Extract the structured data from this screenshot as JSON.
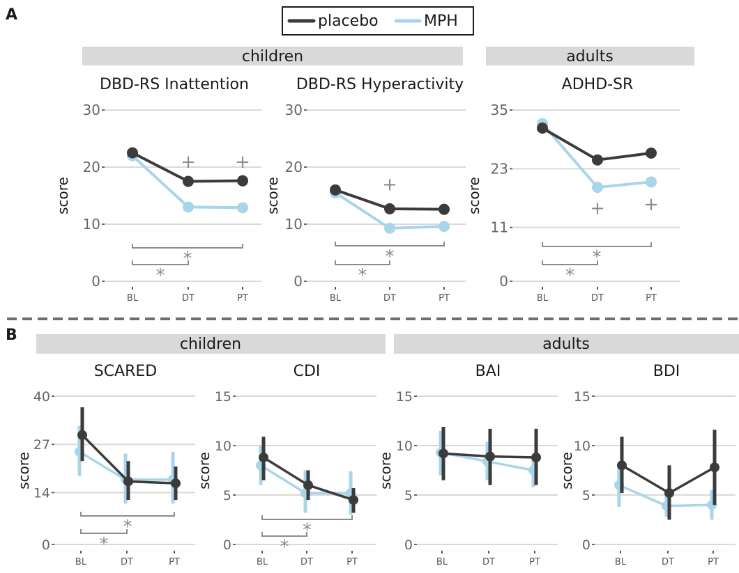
{
  "colors": {
    "placebo": "#3b3b3b",
    "mph": "#a8d5ea",
    "grid": "#d9d9d9",
    "group_header": "#d9d9d9",
    "annotation": "#8c8c8c"
  },
  "panel_labels": {
    "a": "A",
    "b": "B"
  },
  "legend": {
    "placebo": "placebo",
    "mph": "MPH"
  },
  "groups": {
    "a_children": "children",
    "a_adults": "adults",
    "b_children": "children",
    "b_adults": "adults"
  },
  "chart_data": [
    {
      "type": "line",
      "title": "DBD-RS Inattention",
      "ylabel": "score",
      "categories": [
        "BL",
        "DT",
        "PT"
      ],
      "ylim": [
        0,
        30
      ],
      "yticks": [
        "0",
        "10",
        "20",
        "30"
      ],
      "grid": true,
      "error_bars": false,
      "series": [
        {
          "name": "placebo",
          "values": [
            22.5,
            17.5,
            17.6
          ]
        },
        {
          "name": "MPH",
          "values": [
            22.0,
            13.0,
            12.9
          ]
        }
      ],
      "annotations": {
        "markers": [
          {
            "text": "+",
            "x": "DT",
            "y": 21
          },
          {
            "text": "+",
            "x": "PT",
            "y": 21
          }
        ],
        "brackets": [
          {
            "from": "BL",
            "to": "DT",
            "text": "*"
          },
          {
            "from": "BL",
            "to": "PT",
            "text": "*"
          }
        ]
      }
    },
    {
      "type": "line",
      "title": "DBD-RS Hyperactivity",
      "ylabel": "score",
      "categories": [
        "BL",
        "DT",
        "PT"
      ],
      "ylim": [
        0,
        30
      ],
      "yticks": [
        "0",
        "10",
        "20",
        "30"
      ],
      "grid": true,
      "error_bars": false,
      "series": [
        {
          "name": "placebo",
          "values": [
            16.0,
            12.7,
            12.6
          ]
        },
        {
          "name": "MPH",
          "values": [
            15.5,
            9.3,
            9.6
          ]
        }
      ],
      "annotations": {
        "markers": [
          {
            "text": "+",
            "x": "DT",
            "y": 17
          }
        ],
        "brackets": [
          {
            "from": "BL",
            "to": "DT",
            "text": "*"
          },
          {
            "from": "BL",
            "to": "PT",
            "text": "*"
          }
        ]
      }
    },
    {
      "type": "line",
      "title": "ADHD-SR",
      "ylabel": "score",
      "categories": [
        "BL",
        "DT",
        "PT"
      ],
      "ylim": [
        0,
        35
      ],
      "yticks": [
        "0",
        "11",
        "23",
        "35"
      ],
      "grid": true,
      "error_bars": false,
      "series": [
        {
          "name": "placebo",
          "values": [
            31.3,
            24.8,
            26.2
          ]
        },
        {
          "name": "MPH",
          "values": [
            32.2,
            19.2,
            20.3
          ]
        }
      ],
      "annotations": {
        "markers": [
          {
            "text": "+",
            "x": "DT",
            "y": 15
          },
          {
            "text": "+",
            "x": "PT",
            "y": 15.8
          }
        ],
        "brackets": [
          {
            "from": "BL",
            "to": "DT",
            "text": "*"
          },
          {
            "from": "BL",
            "to": "PT",
            "text": "*"
          }
        ]
      }
    },
    {
      "type": "line",
      "title": "SCARED",
      "ylabel": "score",
      "categories": [
        "BL",
        "DT",
        "PT"
      ],
      "ylim": [
        0,
        40
      ],
      "yticks": [
        "0",
        "14",
        "27",
        "40"
      ],
      "grid": true,
      "error_bars": true,
      "series": [
        {
          "name": "placebo",
          "values": [
            29.5,
            17.0,
            16.5
          ],
          "err_low": [
            22.5,
            12.0,
            12.0
          ],
          "err_high": [
            37.0,
            22.5,
            21.0
          ]
        },
        {
          "name": "MPH",
          "values": [
            25.0,
            17.5,
            17.5
          ],
          "err_low": [
            18.5,
            11.0,
            11.0
          ],
          "err_high": [
            32.0,
            24.5,
            25.0
          ]
        }
      ],
      "annotations": {
        "markers": [],
        "brackets": [
          {
            "from": "BL",
            "to": "DT",
            "text": "*"
          },
          {
            "from": "BL",
            "to": "PT",
            "text": "*"
          }
        ]
      }
    },
    {
      "type": "line",
      "title": "CDI",
      "ylabel": "score",
      "categories": [
        "BL",
        "DT",
        "PT"
      ],
      "ylim": [
        0,
        15
      ],
      "yticks": [
        "0",
        "5",
        "10",
        "15"
      ],
      "grid": true,
      "error_bars": true,
      "series": [
        {
          "name": "placebo",
          "values": [
            8.8,
            6.0,
            4.5
          ],
          "err_low": [
            6.5,
            4.5,
            3.2
          ],
          "err_high": [
            10.9,
            7.5,
            5.7
          ]
        },
        {
          "name": "MPH",
          "values": [
            8.0,
            5.2,
            5.2
          ],
          "err_low": [
            6.0,
            3.2,
            3.0
          ],
          "err_high": [
            10.0,
            7.5,
            7.4
          ]
        }
      ],
      "annotations": {
        "markers": [],
        "brackets": [
          {
            "from": "BL",
            "to": "DT",
            "text": "*"
          },
          {
            "from": "BL",
            "to": "PT",
            "text": "*"
          }
        ]
      }
    },
    {
      "type": "line",
      "title": "BAI",
      "ylabel": "score",
      "categories": [
        "BL",
        "DT",
        "PT"
      ],
      "ylim": [
        0,
        15
      ],
      "yticks": [
        "0",
        "5",
        "10",
        "15"
      ],
      "grid": true,
      "error_bars": true,
      "series": [
        {
          "name": "placebo",
          "values": [
            9.2,
            8.9,
            8.8
          ],
          "err_low": [
            6.5,
            6.0,
            6.0
          ],
          "err_high": [
            11.9,
            11.7,
            11.7
          ]
        },
        {
          "name": "MPH",
          "values": [
            9.3,
            8.4,
            7.5
          ],
          "err_low": [
            7.0,
            6.5,
            5.8
          ],
          "err_high": [
            11.5,
            10.4,
            9.0
          ]
        }
      ],
      "annotations": {
        "markers": [],
        "brackets": []
      }
    },
    {
      "type": "line",
      "title": "BDI",
      "ylabel": "score",
      "categories": [
        "BL",
        "DT",
        "PT"
      ],
      "ylim": [
        0,
        15
      ],
      "yticks": [
        "0",
        "5",
        "10",
        "15"
      ],
      "grid": true,
      "error_bars": true,
      "series": [
        {
          "name": "placebo",
          "values": [
            8.0,
            5.2,
            7.8
          ],
          "err_low": [
            5.2,
            2.5,
            4.0
          ],
          "err_high": [
            10.9,
            8.0,
            11.6
          ]
        },
        {
          "name": "MPH",
          "values": [
            6.0,
            3.9,
            4.0
          ],
          "err_low": [
            3.8,
            2.8,
            2.5
          ],
          "err_high": [
            7.9,
            5.0,
            5.5
          ]
        }
      ],
      "annotations": {
        "markers": [],
        "brackets": []
      }
    }
  ]
}
